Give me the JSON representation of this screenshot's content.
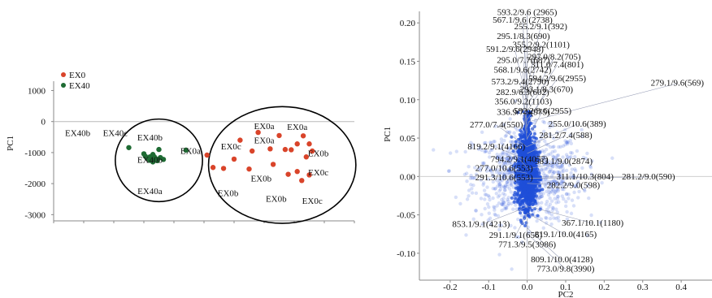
{
  "chart_data": [
    {
      "type": "scatter",
      "title": "",
      "xlabel": "",
      "ylabel": "PC1",
      "ylim": [
        -3200,
        1300
      ],
      "xlim": [
        -10,
        10
      ],
      "yticks": [
        1000,
        0,
        -1000,
        -2000,
        -3000
      ],
      "yticklabels": [
        "1000",
        "0",
        "-1000",
        "-2000",
        "-3000"
      ],
      "grid": false,
      "legend_position": "top-left",
      "series": [
        {
          "name": "EX0",
          "color": "#d9442a",
          "points": [
            [
              3.6,
              -350
            ],
            [
              5.0,
              -450
            ],
            [
              6.6,
              -460
            ],
            [
              2.4,
              -600
            ],
            [
              7.0,
              -720
            ],
            [
              6.2,
              -720
            ],
            [
              4.4,
              -880
            ],
            [
              5.4,
              -900
            ],
            [
              5.8,
              -910
            ],
            [
              3.2,
              -950
            ],
            [
              7.2,
              -950
            ],
            [
              0.2,
              -1080
            ],
            [
              6.8,
              -1140
            ],
            [
              2.0,
              -1210
            ],
            [
              4.6,
              -1380
            ],
            [
              0.6,
              -1480
            ],
            [
              1.3,
              -1510
            ],
            [
              3.0,
              -1530
            ],
            [
              6.2,
              -1610
            ],
            [
              5.6,
              -1700
            ],
            [
              7.0,
              -1720
            ],
            [
              6.5,
              -1900
            ]
          ]
        },
        {
          "name": "EX40",
          "color": "#1e6b33",
          "points": [
            [
              -5.0,
              -840
            ],
            [
              -3.0,
              -900
            ],
            [
              -1.2,
              -920
            ],
            [
              -4.0,
              -1040
            ],
            [
              -3.4,
              -1060
            ],
            [
              -3.9,
              -1120
            ],
            [
              -3.6,
              -1140
            ],
            [
              -3.3,
              -1140
            ],
            [
              -2.9,
              -1160
            ],
            [
              -3.8,
              -1180
            ],
            [
              -3.5,
              -1190
            ],
            [
              -3.2,
              -1200
            ],
            [
              -2.7,
              -1220
            ],
            [
              -3.6,
              -1250
            ],
            [
              -3.1,
              -1260
            ],
            [
              -3.4,
              -1300
            ]
          ]
        }
      ],
      "group_labels": [
        {
          "text": "EX40b",
          "x": -8.4,
          "y": -460
        },
        {
          "text": "EX40c",
          "x": -5.9,
          "y": -460
        },
        {
          "text": "EX40b",
          "x": -3.6,
          "y": -610
        },
        {
          "text": "EX0a",
          "x": -0.9,
          "y": -1040
        },
        {
          "text": "EX0c",
          "x": 1.8,
          "y": -900
        },
        {
          "text": "EX0a",
          "x": 4.0,
          "y": -250
        },
        {
          "text": "EX0a",
          "x": 6.2,
          "y": -270
        },
        {
          "text": "EX0a",
          "x": 4.0,
          "y": -700
        },
        {
          "text": "EX40b",
          "x": -3.6,
          "y": -1330
        },
        {
          "text": "EX40a",
          "x": -3.6,
          "y": -2340
        },
        {
          "text": "EX0b",
          "x": 7.6,
          "y": -1120
        },
        {
          "text": "EX0c",
          "x": 7.6,
          "y": -1730
        },
        {
          "text": "EX0b",
          "x": 3.8,
          "y": -1930
        },
        {
          "text": "EX0b",
          "x": 1.6,
          "y": -2400
        },
        {
          "text": "EX0b",
          "x": 4.8,
          "y": -2580
        },
        {
          "text": "EX0c",
          "x": 7.2,
          "y": -2650
        }
      ],
      "group_ellipses": [
        {
          "cx": -3.0,
          "cy": -1250,
          "rx": 2.9,
          "ry": 1330
        },
        {
          "cx": 5.2,
          "cy": -1400,
          "rx": 4.9,
          "ry": 1880
        }
      ]
    },
    {
      "type": "scatter",
      "title": "",
      "xlabel": "PC2",
      "ylabel": "PC1",
      "xlim": [
        -0.28,
        0.48
      ],
      "ylim": [
        -0.135,
        0.215
      ],
      "xticks": [
        -0.2,
        -0.1,
        0.0,
        0.1,
        0.2,
        0.3,
        0.4
      ],
      "xticklabels": [
        "-0.2",
        "-0.1",
        "0.0",
        "0.1",
        "0.2",
        "0.3",
        "0.4"
      ],
      "yticks": [
        0.2,
        0.15,
        0.1,
        0.05,
        0.0,
        -0.05,
        -0.1
      ],
      "yticklabels": [
        "0.20",
        "0.15",
        "0.10",
        "0.05",
        "0.00",
        "-0.05",
        "-0.10"
      ],
      "grid": false,
      "point_color": "#1f4fd8",
      "annotations": [
        {
          "text": "593.2/9.6 (2965)",
          "x": 0.0,
          "y": 0.21
        },
        {
          "text": "567.1/9.6 (2738)",
          "x": -0.012,
          "y": 0.2
        },
        {
          "text": "255.2/9.1(392)",
          "x": 0.035,
          "y": 0.192
        },
        {
          "text": "295.1/8.3(690)",
          "x": -0.01,
          "y": 0.179
        },
        {
          "text": "355.2/9.2(1101)",
          "x": 0.036,
          "y": 0.168
        },
        {
          "text": "591.2/9.6(2948)",
          "x": -0.032,
          "y": 0.162
        },
        {
          "text": "297.0/8.2(705)",
          "x": 0.07,
          "y": 0.152
        },
        {
          "text": "295.0/7.7(687)",
          "x": -0.01,
          "y": 0.148
        },
        {
          "text": "311.0/7.4(801)",
          "x": 0.078,
          "y": 0.142
        },
        {
          "text": "568.1/9.6(2742)",
          "x": -0.012,
          "y": 0.135
        },
        {
          "text": "594.2/9.6(2955)",
          "x": 0.078,
          "y": 0.124
        },
        {
          "text": "573.2/9.4(2790)",
          "x": -0.018,
          "y": 0.12
        },
        {
          "text": "293.1/8.3(670)",
          "x": 0.05,
          "y": 0.11
        },
        {
          "text": "279.1/9.6(569)",
          "x": 0.39,
          "y": 0.118
        },
        {
          "text": "282.9/6.3(602)",
          "x": -0.012,
          "y": 0.106
        },
        {
          "text": "356.0/9.2(1103)",
          "x": -0.01,
          "y": 0.094
        },
        {
          "text": "592.2/9.6(2955)",
          "x": 0.04,
          "y": 0.082
        },
        {
          "text": "336.9/7.9(975)",
          "x": -0.01,
          "y": 0.08
        },
        {
          "text": "277.0/7.4(550)",
          "x": -0.08,
          "y": 0.064
        },
        {
          "text": "255.0/10.6(389)",
          "x": 0.13,
          "y": 0.065
        },
        {
          "text": "281.2/7.4(588)",
          "x": 0.1,
          "y": 0.05
        },
        {
          "text": "819.2/9.1(4166)",
          "x": -0.08,
          "y": 0.035
        },
        {
          "text": "583.1/9.0(2874)",
          "x": 0.095,
          "y": 0.016
        },
        {
          "text": "794.2/9.1(4077)",
          "x": -0.02,
          "y": 0.019
        },
        {
          "text": "277.0/10.6(553)",
          "x": -0.06,
          "y": 0.007
        },
        {
          "text": "291.3/10.6(553)",
          "x": -0.06,
          "y": -0.005
        },
        {
          "text": "311.1/10.3(804)",
          "x": 0.15,
          "y": -0.004
        },
        {
          "text": "281.2/9.0(590)",
          "x": 0.315,
          "y": -0.004
        },
        {
          "text": "282.2/9.0(598)",
          "x": 0.12,
          "y": -0.015
        },
        {
          "text": "853.1/9.1(4213)",
          "x": -0.12,
          "y": -0.066
        },
        {
          "text": "367.1/10.1(1180)",
          "x": 0.17,
          "y": -0.064
        },
        {
          "text": "291.1/9.1(656)",
          "x": -0.03,
          "y": -0.08
        },
        {
          "text": "819.1/10.0(4165)",
          "x": 0.1,
          "y": -0.079
        },
        {
          "text": "771.3/9.5(3986)",
          "x": 0.0,
          "y": -0.092
        },
        {
          "text": "809.1/10.0(4128)",
          "x": 0.09,
          "y": -0.112
        },
        {
          "text": "773.0/9.8(3990)",
          "x": 0.1,
          "y": -0.124
        }
      ]
    }
  ]
}
